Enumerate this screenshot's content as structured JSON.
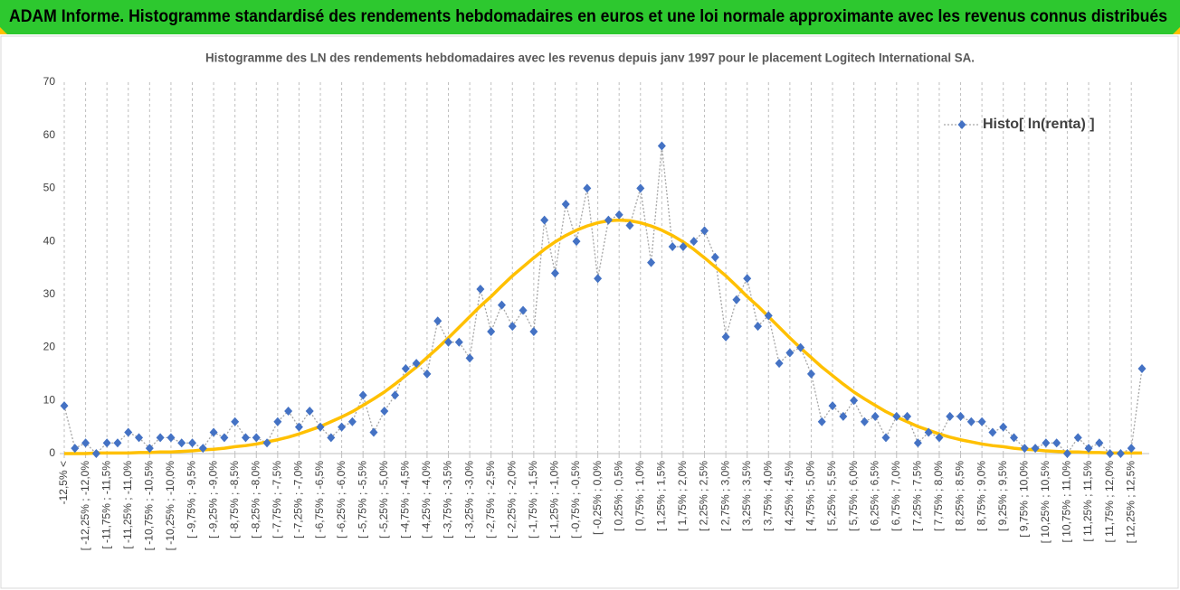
{
  "header": {
    "title": "ADAM Informe. Histogramme standardisé des rendements hebdomadaires en euros et une loi normale approximante avec les revenus connus distribués"
  },
  "chart_data": {
    "type": "line",
    "title": "Histogramme des LN des rendements hebdomadaires avec les revenus depuis janv 1997 pour le placement Logitech International SA.",
    "categories": [
      "-12,5% <",
      null,
      "[ -12,25% ; -12,0%",
      null,
      "[ -11,75% ; -11,5%",
      null,
      "[ -11,25% ; -11,0%",
      null,
      "[ -10,75% ; -10,5%",
      null,
      "[ -10,25% ; -10,0%",
      null,
      "[ -9,75% ; -9,5%",
      null,
      "[ -9,25% ; -9,0%",
      null,
      "[ -8,75% ; -8,5%",
      null,
      "[ -8,25% ; -8,0%",
      null,
      "[ -7,75% ; -7,5%",
      null,
      "[ -7,25% ; -7,0%",
      null,
      "[ -6,75% ; -6,5%",
      null,
      "[ -6,25% ; -6,0%",
      null,
      "[ -5,75% ; -5,5%",
      null,
      "[ -5,25% ; -5,0%",
      null,
      "[ -4,75% ; -4,5%",
      null,
      "[ -4,25% ; -4,0%",
      null,
      "[ -3,75% ; -3,5%",
      null,
      "[ -3,25% ; -3,0%",
      null,
      "[ -2,75% ; -2,5%",
      null,
      "[ -2,25% ; -2,0%",
      null,
      "[ -1,75% ; -1,5%",
      null,
      "[ -1,25% ; -1,0%",
      null,
      "[ -0,75% ; -0,5%",
      null,
      "[ -0,25% ; 0,0%",
      null,
      "[ 0,25% ; 0,5%",
      null,
      "[ 0,75% ; 1,0%",
      null,
      "[ 1,25% ; 1,5%",
      null,
      "[ 1,75% ; 2,0%",
      null,
      "[ 2,25% ; 2,5%",
      null,
      "[ 2,75% ; 3,0%",
      null,
      "[ 3,25% ; 3,5%",
      null,
      "[ 3,75% ; 4,0%",
      null,
      "[ 4,25% ; 4,5%",
      null,
      "[ 4,75% ; 5,0%",
      null,
      "[ 5,25% ; 5,5%",
      null,
      "[ 5,75% ; 6,0%",
      null,
      "[ 6,25% ; 6,5%",
      null,
      "[ 6,75% ; 7,0%",
      null,
      "[ 7,25% ; 7,5%",
      null,
      "[ 7,75% ; 8,0%",
      null,
      "[ 8,25% ; 8,5%",
      null,
      "[ 8,75% ; 9,0%",
      null,
      "[ 9,25% ; 9,5%",
      null,
      "[ 9,75% ; 10,0%",
      null,
      "[ 10,25% ; 10,5%",
      null,
      "[ 10,75% ; 11,0%",
      null,
      "[ 11,25% ; 11,5%",
      null,
      "[ 11,75% ; 12,0%",
      null,
      "[ 12,25% ; 12,5%",
      null
    ],
    "series": [
      {
        "name": "Histo[ ln(renta) ]",
        "color": "#4472c4",
        "line_color": "#a6a6a6",
        "line_style": "dotted",
        "marker": "diamond",
        "values": [
          9,
          1,
          2,
          0,
          2,
          2,
          4,
          3,
          1,
          3,
          3,
          2,
          2,
          1,
          4,
          3,
          6,
          3,
          3,
          2,
          6,
          8,
          5,
          8,
          5,
          3,
          5,
          6,
          11,
          4,
          8,
          11,
          16,
          17,
          15,
          25,
          21,
          21,
          18,
          31,
          23,
          28,
          24,
          27,
          23,
          44,
          34,
          47,
          40,
          50,
          33,
          44,
          45,
          43,
          50,
          36,
          58,
          39,
          39,
          40,
          42,
          37,
          22,
          29,
          33,
          24,
          26,
          17,
          19,
          20,
          15,
          6,
          9,
          7,
          10,
          6,
          7,
          3,
          7,
          7,
          2,
          4,
          3,
          7,
          7,
          6,
          6,
          4,
          5,
          3,
          1,
          1,
          2,
          2,
          0,
          3,
          1,
          2,
          0,
          0,
          1,
          16
        ]
      },
      {
        "color": "#ffc000",
        "line_style": "solid",
        "marker": "none",
        "values": [
          0.0,
          0.0,
          0.0,
          0.1,
          0.1,
          0.1,
          0.1,
          0.2,
          0.2,
          0.3,
          0.3,
          0.4,
          0.5,
          0.7,
          0.8,
          1.0,
          1.3,
          1.5,
          1.8,
          2.2,
          2.6,
          3.1,
          3.7,
          4.4,
          5.1,
          6.0,
          6.9,
          7.9,
          9.1,
          10.3,
          11.6,
          13.1,
          14.7,
          16.3,
          18.1,
          19.9,
          21.8,
          23.8,
          25.8,
          27.8,
          29.6,
          31.6,
          33.5,
          35.2,
          36.9,
          38.5,
          39.9,
          41.1,
          42.1,
          42.9,
          43.5,
          43.9,
          44.0,
          43.9,
          43.5,
          42.9,
          42.1,
          41.1,
          39.9,
          38.5,
          36.9,
          35.2,
          33.5,
          31.6,
          29.6,
          27.8,
          25.8,
          23.8,
          21.8,
          19.9,
          18.1,
          16.3,
          14.7,
          13.1,
          11.6,
          10.3,
          9.1,
          7.9,
          6.9,
          6.0,
          5.1,
          4.4,
          3.7,
          3.1,
          2.6,
          2.2,
          1.8,
          1.5,
          1.3,
          1.0,
          0.8,
          0.7,
          0.5,
          0.4,
          0.3,
          0.3,
          0.2,
          0.2,
          0.1,
          0.1,
          0.1,
          0.1
        ]
      }
    ],
    "ylim": [
      0,
      70
    ],
    "yticks": [
      0,
      10,
      20,
      30,
      40,
      50,
      60,
      70
    ],
    "x_grid": true,
    "y_grid": false,
    "legend": "top-right"
  }
}
